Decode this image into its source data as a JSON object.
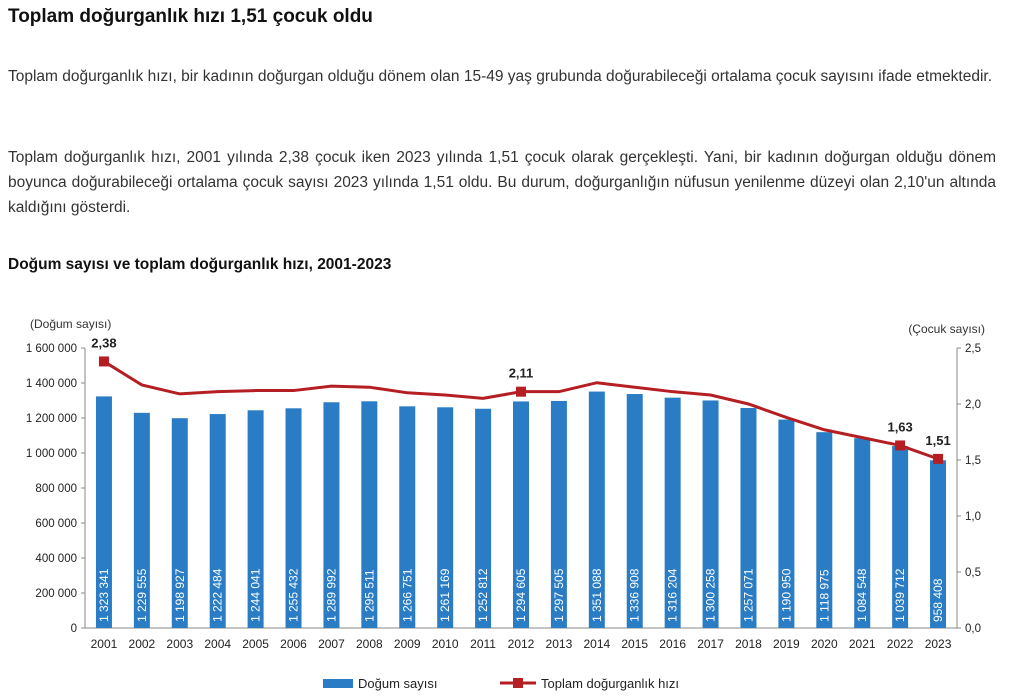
{
  "title": "Toplam doğurganlık hızı 1,51 çocuk oldu",
  "paragraphs": [
    "Toplam doğurganlık hızı, bir kadının doğurgan olduğu dönem olan 15-49 yaş grubunda doğurabileceği ortalama çocuk sayısını ifade etmektedir.",
    "Toplam doğurganlık hızı, 2001 yılında 2,38 çocuk iken 2023 yılında 1,51 çocuk olarak gerçekleşti. Yani, bir kadının doğurgan olduğu dönem boyunca doğurabileceği ortalama çocuk sayısı 2023 yılında 1,51 oldu. Bu durum, doğurganlığın nüfusun yenilenme düzeyi olan 2,10'un altında kaldığını gösterdi."
  ],
  "chart_title": "Doğum sayısı ve toplam doğurganlık hızı, 2001-2023",
  "chart_data": {
    "type": "bar+line",
    "categories": [
      "2001",
      "2002",
      "2003",
      "2004",
      "2005",
      "2006",
      "2007",
      "2008",
      "2009",
      "2010",
      "2011",
      "2012",
      "2013",
      "2014",
      "2015",
      "2016",
      "2017",
      "2018",
      "2019",
      "2020",
      "2021",
      "2022",
      "2023"
    ],
    "series": [
      {
        "name": "Doğum sayısı",
        "type": "bar",
        "axis": "left",
        "color": "#2a7dc4",
        "values": [
          1323341,
          1229555,
          1198927,
          1222484,
          1244041,
          1255432,
          1289992,
          1295511,
          1266751,
          1261169,
          1252812,
          1294605,
          1297505,
          1351088,
          1336908,
          1316204,
          1300258,
          1257071,
          1190950,
          1118975,
          1084548,
          1039712,
          958408
        ],
        "labels": [
          "1 323 341",
          "1 229 555",
          "1 198 927",
          "1 222 484",
          "1 244 041",
          "1 255 432",
          "1 289 992",
          "1 295 511",
          "1 266 751",
          "1 261 169",
          "1 252 812",
          "1 294 605",
          "1 297 505",
          "1 351 088",
          "1 336 908",
          "1 316 204",
          "1 300 258",
          "1 257 071",
          "1 190 950",
          "1 118 975",
          "1 084 548",
          "1 039 712",
          "958 408"
        ]
      },
      {
        "name": "Toplam doğurganlık hızı",
        "type": "line",
        "axis": "right",
        "color": "#b51f24",
        "values": [
          2.38,
          2.17,
          2.09,
          2.11,
          2.12,
          2.12,
          2.16,
          2.15,
          2.1,
          2.08,
          2.05,
          2.11,
          2.11,
          2.19,
          2.15,
          2.11,
          2.08,
          2.0,
          1.88,
          1.77,
          1.7,
          1.63,
          1.51
        ],
        "annotations": [
          {
            "year": "2001",
            "label": "2,38"
          },
          {
            "year": "2012",
            "label": "2,11"
          },
          {
            "year": "2022",
            "label": "1,63"
          },
          {
            "year": "2023",
            "label": "1,51"
          }
        ]
      }
    ],
    "ylabel_left": "(Doğum sayısı)",
    "ylabel_right": "(Çocuk sayısı)",
    "ylim_left": [
      0,
      1600000
    ],
    "ylim_right": [
      0,
      2.5
    ],
    "yticks_left": [
      "0",
      "200 000",
      "400 000",
      "600 000",
      "800 000",
      "1 000 000",
      "1 200 000",
      "1 400 000",
      "1 600 000"
    ],
    "yticks_right": [
      "0,0",
      "0,5",
      "1,0",
      "1,5",
      "2,0",
      "2,5"
    ],
    "legend": "bottom"
  }
}
